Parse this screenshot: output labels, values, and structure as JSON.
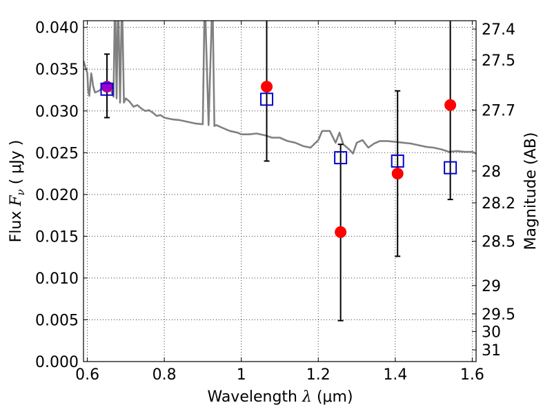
{
  "chart_data": {
    "type": "scatter",
    "title": "",
    "xlabel": {
      "prefix": "Wavelength",
      "symbol": "λ",
      "unit": "(μm)"
    },
    "ylabel": {
      "prefix": "Flux",
      "symbol": "F",
      "subscript": "ν",
      "unit": "( μJy )"
    },
    "y2label": "Magnitude (AB)",
    "xlim": [
      0.59,
      1.61
    ],
    "ylim": [
      0.0,
      0.0408
    ],
    "grid": true,
    "x_ticks": [
      0.6,
      0.8,
      1.0,
      1.2,
      1.4,
      1.6
    ],
    "x_tick_labels": [
      "0.6",
      "0.8",
      "1",
      "1.2",
      "1.4",
      "1.6"
    ],
    "y_ticks": [
      0.0,
      0.005,
      0.01,
      0.015,
      0.02,
      0.025,
      0.03,
      0.035,
      0.04
    ],
    "y_tick_labels": [
      "0.000",
      "0.005",
      "0.010",
      "0.015",
      "0.020",
      "0.025",
      "0.030",
      "0.035",
      "0.040"
    ],
    "y2_ticks": [
      {
        "label": "27.4",
        "flux": 0.0398
      },
      {
        "label": "27.5",
        "flux": 0.0361
      },
      {
        "label": "27.7",
        "flux": 0.0301
      },
      {
        "label": "28",
        "flux": 0.0228
      },
      {
        "label": "28.2",
        "flux": 0.019
      },
      {
        "label": "28.5",
        "flux": 0.0144
      },
      {
        "label": "29",
        "flux": 0.0091
      },
      {
        "label": "29.5",
        "flux": 0.0057
      },
      {
        "label": "30",
        "flux": 0.0036
      },
      {
        "label": "31",
        "flux": 0.0014
      }
    ],
    "series": [
      {
        "kind": "model_spectrum",
        "color": "#808080",
        "x": [
          0.59,
          0.6,
          0.602,
          0.605,
          0.61,
          0.612,
          0.615,
          0.62,
          0.63,
          0.64,
          0.65,
          0.66,
          0.668,
          0.672,
          0.676,
          0.68,
          0.685,
          0.69,
          0.695,
          0.7,
          0.71,
          0.72,
          0.73,
          0.74,
          0.75,
          0.76,
          0.77,
          0.78,
          0.79,
          0.8,
          0.82,
          0.84,
          0.86,
          0.88,
          0.9,
          0.905,
          0.915,
          0.925,
          0.93,
          0.935,
          0.95,
          0.97,
          0.99,
          1.0,
          1.02,
          1.04,
          1.06,
          1.08,
          1.1,
          1.12,
          1.14,
          1.16,
          1.18,
          1.2,
          1.21,
          1.23,
          1.245,
          1.255,
          1.265,
          1.28,
          1.29,
          1.3,
          1.315,
          1.33,
          1.345,
          1.36,
          1.38,
          1.4,
          1.42,
          1.44,
          1.46,
          1.48,
          1.5,
          1.52,
          1.54,
          1.56,
          1.58,
          1.6,
          1.61
        ],
        "y": [
          0.036,
          0.0345,
          0.0325,
          0.0318,
          0.0345,
          0.034,
          0.033,
          0.0322,
          0.0324,
          0.0328,
          0.0329,
          0.0326,
          0.0317,
          0.044,
          0.0315,
          0.044,
          0.031,
          0.044,
          0.031,
          0.0315,
          0.0311,
          0.0305,
          0.0307,
          0.0303,
          0.03,
          0.0301,
          0.0298,
          0.0294,
          0.0295,
          0.0292,
          0.029,
          0.0289,
          0.0287,
          0.0285,
          0.0284,
          0.044,
          0.0283,
          0.044,
          0.0282,
          0.0283,
          0.028,
          0.0276,
          0.0274,
          0.0272,
          0.0272,
          0.0273,
          0.0271,
          0.0268,
          0.0268,
          0.0264,
          0.0262,
          0.0258,
          0.0256,
          0.0265,
          0.0276,
          0.0276,
          0.0262,
          0.0274,
          0.026,
          0.0254,
          0.0249,
          0.0262,
          0.0265,
          0.0256,
          0.0261,
          0.0264,
          0.0264,
          0.0263,
          0.0262,
          0.0261,
          0.0259,
          0.0257,
          0.0256,
          0.0254,
          0.0251,
          0.0252,
          0.0251,
          0.0251,
          0.0249
        ]
      },
      {
        "kind": "model_points",
        "marker": "square",
        "color": "#0000cc",
        "x": [
          0.651,
          1.066,
          1.258,
          1.406,
          1.543
        ],
        "y": [
          0.0326,
          0.0314,
          0.0244,
          0.024,
          0.0232
        ]
      },
      {
        "kind": "observed",
        "marker": "circle",
        "color": "#ff0000",
        "x": [
          0.651,
          1.066,
          1.258,
          1.406,
          1.543
        ],
        "y": [
          0.0329,
          0.0329,
          0.0155,
          0.0225,
          0.0307
        ],
        "yerr_low": [
          0.0037,
          0.0089,
          0.0106,
          0.0099,
          0.0113
        ],
        "yerr_high": [
          0.0039,
          0.0149,
          0.0105,
          0.0099,
          0.0133
        ]
      }
    ],
    "colors": {
      "spectrum": "#808080",
      "model": "#0000cc",
      "observed": "#ff0000",
      "overlap": "#9900cc",
      "error": "#000000",
      "grid": "#333333"
    }
  }
}
